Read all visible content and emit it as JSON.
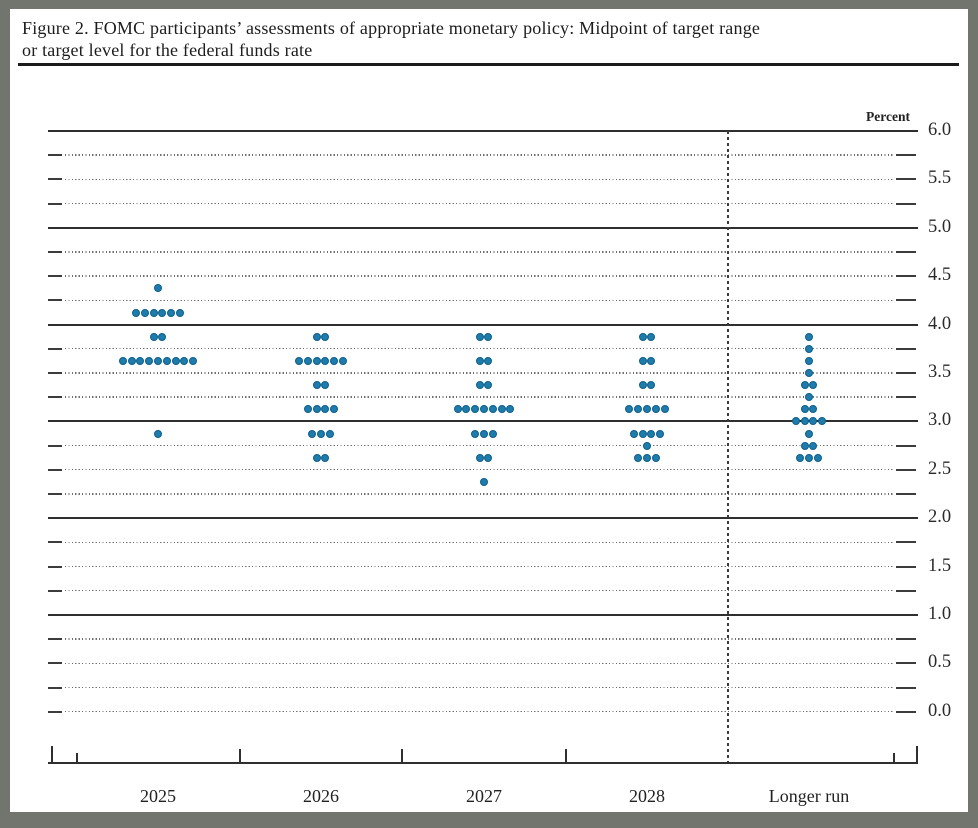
{
  "page": {
    "title_line1": "Figure 2. FOMC participants’ assessments of appropriate monetary policy: Midpoint of target range",
    "title_line2": "or target level for the federal funds rate"
  },
  "chart_data": {
    "type": "scatter",
    "subtype": "fomc-dot-plot",
    "title": "Figure 2. FOMC participants’ assessments of appropriate monetary policy: Midpoint of target range or target level for the federal funds rate",
    "unit_label": "Percent",
    "dot_color": "#1d7cab",
    "legend_position": "none",
    "grid": "on",
    "y_axis": {
      "min": 0.0,
      "max": 6.0,
      "label_step": 0.5,
      "grid_step": 0.25,
      "tick_labels": [
        "6.0",
        "5.5",
        "5.0",
        "4.5",
        "4.0",
        "3.5",
        "3.0",
        "2.5",
        "2.0",
        "1.5",
        "1.0",
        "0.5",
        "0.0"
      ],
      "solid_gridlines": [
        6.0,
        5.0,
        4.0,
        3.0,
        2.0,
        1.0
      ]
    },
    "categories": [
      "2025",
      "2026",
      "2027",
      "2028",
      "Longer run"
    ],
    "separator_before_category": "Longer run",
    "series": [
      {
        "category": "2025",
        "dots": [
          {
            "rate": 4.375,
            "count": 1
          },
          {
            "rate": 4.125,
            "count": 6
          },
          {
            "rate": 3.875,
            "count": 2
          },
          {
            "rate": 3.625,
            "count": 9
          },
          {
            "rate": 2.875,
            "count": 1
          }
        ]
      },
      {
        "category": "2026",
        "dots": [
          {
            "rate": 3.875,
            "count": 2
          },
          {
            "rate": 3.625,
            "count": 6
          },
          {
            "rate": 3.375,
            "count": 2
          },
          {
            "rate": 3.125,
            "count": 4
          },
          {
            "rate": 2.875,
            "count": 3
          },
          {
            "rate": 2.625,
            "count": 2
          }
        ]
      },
      {
        "category": "2027",
        "dots": [
          {
            "rate": 3.875,
            "count": 2
          },
          {
            "rate": 3.625,
            "count": 2
          },
          {
            "rate": 3.375,
            "count": 2
          },
          {
            "rate": 3.125,
            "count": 7
          },
          {
            "rate": 2.875,
            "count": 3
          },
          {
            "rate": 2.625,
            "count": 2
          },
          {
            "rate": 2.375,
            "count": 1
          }
        ]
      },
      {
        "category": "2028",
        "dots": [
          {
            "rate": 3.875,
            "count": 2
          },
          {
            "rate": 3.625,
            "count": 2
          },
          {
            "rate": 3.375,
            "count": 2
          },
          {
            "rate": 3.125,
            "count": 5
          },
          {
            "rate": 2.875,
            "count": 4
          },
          {
            "rate": 2.75,
            "count": 1
          },
          {
            "rate": 2.625,
            "count": 3
          }
        ]
      },
      {
        "category": "Longer run",
        "dots": [
          {
            "rate": 3.875,
            "count": 1
          },
          {
            "rate": 3.75,
            "count": 1
          },
          {
            "rate": 3.625,
            "count": 1
          },
          {
            "rate": 3.5,
            "count": 1
          },
          {
            "rate": 3.375,
            "count": 2
          },
          {
            "rate": 3.25,
            "count": 1
          },
          {
            "rate": 3.125,
            "count": 2
          },
          {
            "rate": 3.0,
            "count": 4
          },
          {
            "rate": 2.875,
            "count": 1
          },
          {
            "rate": 2.75,
            "count": 2
          },
          {
            "rate": 2.625,
            "count": 3
          }
        ]
      }
    ]
  }
}
